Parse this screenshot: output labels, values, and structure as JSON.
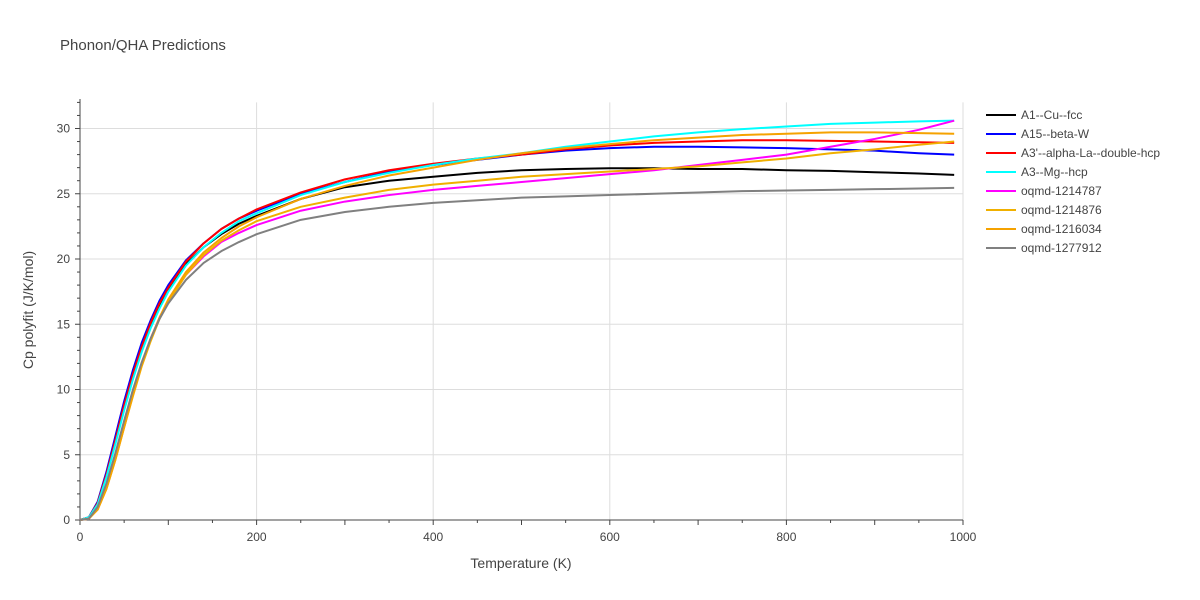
{
  "chart_data": {
    "type": "line",
    "title": "Phonon/QHA Predictions",
    "xlabel": "Temperature (K)",
    "ylabel": "Cp polyfit (J/K/mol)",
    "xlim": [
      0,
      1000
    ],
    "ylim": [
      0,
      32
    ],
    "xticks": [
      0,
      200,
      400,
      600,
      800,
      1000
    ],
    "yticks": [
      0,
      5,
      10,
      15,
      20,
      25,
      30
    ],
    "grid": true,
    "legend_position": "top-right",
    "x": [
      0,
      10,
      20,
      30,
      40,
      50,
      60,
      70,
      80,
      90,
      100,
      120,
      140,
      160,
      180,
      200,
      250,
      300,
      350,
      400,
      450,
      500,
      550,
      600,
      650,
      700,
      750,
      800,
      850,
      900,
      950,
      990
    ],
    "series": [
      {
        "name": "A1--Cu--fcc",
        "color": "#000000",
        "values": [
          0,
          0.2,
          1.3,
          3.5,
          6.1,
          8.7,
          11.1,
          13.2,
          15.0,
          16.5,
          17.7,
          19.6,
          20.9,
          21.9,
          22.7,
          23.3,
          24.6,
          25.5,
          26.0,
          26.3,
          26.6,
          26.8,
          26.9,
          26.95,
          26.95,
          26.9,
          26.9,
          26.8,
          26.75,
          26.65,
          26.55,
          26.45
        ]
      },
      {
        "name": "A15--beta-W",
        "color": "#0000ff",
        "values": [
          0,
          0.2,
          1.4,
          3.7,
          6.4,
          9.1,
          11.5,
          13.6,
          15.3,
          16.8,
          18.0,
          19.9,
          21.2,
          22.3,
          23.1,
          23.7,
          25.0,
          25.9,
          26.7,
          27.2,
          27.6,
          28.0,
          28.3,
          28.5,
          28.6,
          28.6,
          28.55,
          28.5,
          28.4,
          28.3,
          28.1,
          28.0
        ]
      },
      {
        "name": "A3'--alpha-La--double-hcp",
        "color": "#ff0000",
        "values": [
          0,
          0.2,
          1.3,
          3.5,
          6.1,
          8.8,
          11.2,
          13.3,
          15.1,
          16.6,
          17.8,
          19.8,
          21.2,
          22.3,
          23.1,
          23.8,
          25.1,
          26.1,
          26.8,
          27.3,
          27.7,
          28.0,
          28.4,
          28.7,
          28.9,
          29.0,
          29.1,
          29.1,
          29.05,
          29.0,
          28.95,
          28.9
        ]
      },
      {
        "name": "A3--Mg--hcp",
        "color": "#00ffff",
        "values": [
          0,
          0.2,
          1.2,
          3.3,
          5.8,
          8.4,
          10.8,
          12.9,
          14.7,
          16.2,
          17.5,
          19.5,
          20.9,
          22.0,
          22.9,
          23.5,
          24.9,
          25.9,
          26.6,
          27.2,
          27.7,
          28.1,
          28.6,
          29.0,
          29.4,
          29.7,
          29.95,
          30.15,
          30.35,
          30.45,
          30.55,
          30.6
        ]
      },
      {
        "name": "oqmd-1214787",
        "color": "#ff00ff",
        "values": [
          0,
          0.1,
          0.9,
          2.6,
          4.9,
          7.4,
          9.8,
          12.0,
          13.9,
          15.5,
          16.8,
          18.8,
          20.2,
          21.3,
          22.0,
          22.6,
          23.7,
          24.4,
          24.9,
          25.3,
          25.6,
          25.9,
          26.2,
          26.5,
          26.8,
          27.2,
          27.6,
          28.0,
          28.6,
          29.2,
          29.9,
          30.6
        ]
      },
      {
        "name": "oqmd-1214876",
        "color": "#f0b000",
        "values": [
          0,
          0.1,
          0.8,
          2.4,
          4.6,
          7.1,
          9.5,
          11.8,
          13.7,
          15.4,
          16.7,
          18.8,
          20.3,
          21.4,
          22.2,
          22.9,
          24.0,
          24.7,
          25.3,
          25.7,
          26.0,
          26.3,
          26.5,
          26.7,
          26.9,
          27.1,
          27.4,
          27.7,
          28.1,
          28.4,
          28.75,
          29.0
        ]
      },
      {
        "name": "oqmd-1216034",
        "color": "#f5a200",
        "values": [
          0,
          0.1,
          0.8,
          2.4,
          4.6,
          7.1,
          9.6,
          11.9,
          13.9,
          15.5,
          16.9,
          19.0,
          20.5,
          21.6,
          22.5,
          23.2,
          24.6,
          25.6,
          26.4,
          27.0,
          27.6,
          28.1,
          28.5,
          28.8,
          29.1,
          29.3,
          29.5,
          29.6,
          29.7,
          29.7,
          29.65,
          29.6
        ]
      },
      {
        "name": "oqmd-1277912",
        "color": "#808080",
        "values": [
          0,
          0.1,
          1.0,
          2.8,
          5.1,
          7.6,
          10.0,
          12.1,
          13.9,
          15.4,
          16.6,
          18.4,
          19.7,
          20.6,
          21.3,
          21.9,
          23.0,
          23.6,
          24.0,
          24.3,
          24.5,
          24.7,
          24.8,
          24.9,
          25.0,
          25.1,
          25.2,
          25.25,
          25.3,
          25.35,
          25.4,
          25.45
        ]
      }
    ]
  }
}
